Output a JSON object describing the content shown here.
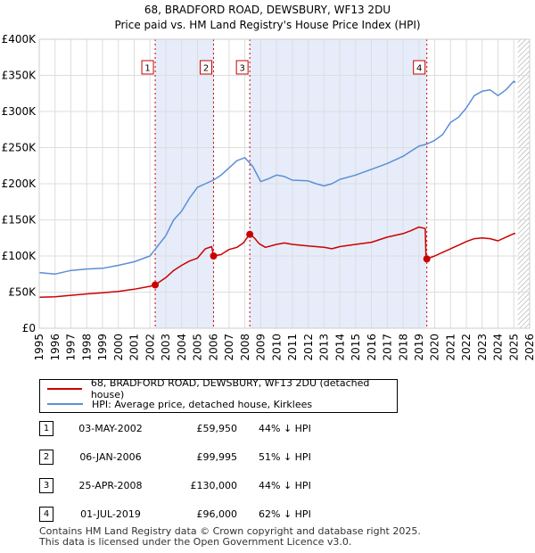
{
  "title_line1": "68, BRADFORD ROAD, DEWSBURY, WF13 2DU",
  "title_line2": "Price paid vs. HM Land Registry's House Price Index (HPI)",
  "chart_data": {
    "type": "line",
    "xlim": [
      1995,
      2026
    ],
    "ylim": [
      0,
      400000
    ],
    "x_ticks": [
      1995,
      1996,
      1997,
      1998,
      1999,
      2000,
      2001,
      2002,
      2003,
      2004,
      2005,
      2006,
      2007,
      2008,
      2009,
      2010,
      2011,
      2012,
      2013,
      2014,
      2015,
      2016,
      2017,
      2018,
      2019,
      2020,
      2021,
      2022,
      2023,
      2024,
      2025,
      2026
    ],
    "y_ticks": [
      {
        "value": 0,
        "label": "£0"
      },
      {
        "value": 50000,
        "label": "£50K"
      },
      {
        "value": 100000,
        "label": "£100K"
      },
      {
        "value": 150000,
        "label": "£150K"
      },
      {
        "value": 200000,
        "label": "£200K"
      },
      {
        "value": 250000,
        "label": "£250K"
      },
      {
        "value": 300000,
        "label": "£300K"
      },
      {
        "value": 350000,
        "label": "£350K"
      },
      {
        "value": 400000,
        "label": "£400K"
      }
    ],
    "grid": true,
    "hatched_from": 2025.25,
    "shaded_periods": [
      [
        2002.33,
        2006.02
      ],
      [
        2008.31,
        2019.5
      ]
    ],
    "series": [
      {
        "name": "68, BRADFORD ROAD, DEWSBURY, WF13 2DU (detached house)",
        "color": "#cc0000",
        "points": [
          [
            1995.0,
            43000
          ],
          [
            1996.0,
            43500
          ],
          [
            1997.0,
            45500
          ],
          [
            1998.0,
            47500
          ],
          [
            1999.0,
            49000
          ],
          [
            2000.0,
            51000
          ],
          [
            2001.0,
            54000
          ],
          [
            2002.0,
            58000
          ],
          [
            2002.33,
            59950
          ],
          [
            2003.0,
            70000
          ],
          [
            2003.5,
            80000
          ],
          [
            2004.0,
            87000
          ],
          [
            2004.5,
            93000
          ],
          [
            2005.0,
            97000
          ],
          [
            2005.5,
            110000
          ],
          [
            2005.9,
            113000
          ],
          [
            2006.02,
            99995
          ],
          [
            2006.5,
            102000
          ],
          [
            2007.0,
            109000
          ],
          [
            2007.5,
            112000
          ],
          [
            2007.9,
            118000
          ],
          [
            2008.2,
            127000
          ],
          [
            2008.31,
            130000
          ],
          [
            2008.6,
            125000
          ],
          [
            2008.9,
            117000
          ],
          [
            2009.3,
            112000
          ],
          [
            2010.0,
            116000
          ],
          [
            2010.5,
            118000
          ],
          [
            2011.0,
            116000
          ],
          [
            2012.0,
            114000
          ],
          [
            2013.0,
            112000
          ],
          [
            2013.5,
            110000
          ],
          [
            2014.0,
            113000
          ],
          [
            2015.0,
            116000
          ],
          [
            2016.0,
            119000
          ],
          [
            2017.0,
            126000
          ],
          [
            2018.0,
            131000
          ],
          [
            2018.5,
            135000
          ],
          [
            2019.0,
            140000
          ],
          [
            2019.4,
            138000
          ],
          [
            2019.45,
            96000
          ],
          [
            2019.5,
            96000
          ],
          [
            2020.0,
            100000
          ],
          [
            2020.5,
            105000
          ],
          [
            2021.0,
            110000
          ],
          [
            2021.5,
            115000
          ],
          [
            2022.0,
            120000
          ],
          [
            2022.5,
            124000
          ],
          [
            2023.0,
            125000
          ],
          [
            2023.5,
            124000
          ],
          [
            2024.0,
            121000
          ],
          [
            2024.5,
            126000
          ],
          [
            2025.0,
            131000
          ],
          [
            2025.1,
            131000
          ]
        ]
      },
      {
        "name": "HPI: Average price, detached house, Kirklees",
        "color": "#5b8fd4",
        "points": [
          [
            1995.0,
            77000
          ],
          [
            1996.0,
            75000
          ],
          [
            1997.0,
            80000
          ],
          [
            1998.0,
            82000
          ],
          [
            1999.0,
            83000
          ],
          [
            2000.0,
            87000
          ],
          [
            2001.0,
            92000
          ],
          [
            2002.0,
            100000
          ],
          [
            2003.0,
            128000
          ],
          [
            2003.5,
            150000
          ],
          [
            2004.0,
            162000
          ],
          [
            2004.5,
            180000
          ],
          [
            2005.0,
            195000
          ],
          [
            2005.5,
            200000
          ],
          [
            2006.0,
            205000
          ],
          [
            2006.5,
            212000
          ],
          [
            2007.0,
            222000
          ],
          [
            2007.5,
            232000
          ],
          [
            2008.0,
            236000
          ],
          [
            2008.5,
            224000
          ],
          [
            2009.0,
            203000
          ],
          [
            2009.5,
            207000
          ],
          [
            2010.0,
            212000
          ],
          [
            2010.5,
            210000
          ],
          [
            2011.0,
            205000
          ],
          [
            2012.0,
            204000
          ],
          [
            2012.5,
            200000
          ],
          [
            2013.0,
            197000
          ],
          [
            2013.5,
            200000
          ],
          [
            2014.0,
            206000
          ],
          [
            2015.0,
            212000
          ],
          [
            2016.0,
            220000
          ],
          [
            2017.0,
            228000
          ],
          [
            2018.0,
            238000
          ],
          [
            2018.5,
            245000
          ],
          [
            2019.0,
            252000
          ],
          [
            2019.5,
            255000
          ],
          [
            2020.0,
            260000
          ],
          [
            2020.5,
            268000
          ],
          [
            2021.0,
            285000
          ],
          [
            2021.5,
            292000
          ],
          [
            2022.0,
            305000
          ],
          [
            2022.5,
            322000
          ],
          [
            2023.0,
            328000
          ],
          [
            2023.5,
            330000
          ],
          [
            2024.0,
            322000
          ],
          [
            2024.5,
            330000
          ],
          [
            2025.0,
            342000
          ],
          [
            2025.1,
            340000
          ]
        ]
      }
    ],
    "sales": [
      {
        "label": "1",
        "x": 2002.33,
        "y": 59950
      },
      {
        "label": "2",
        "x": 2006.02,
        "y": 99995
      },
      {
        "label": "3",
        "x": 2008.31,
        "y": 130000
      },
      {
        "label": "4",
        "x": 2019.5,
        "y": 96000
      }
    ]
  },
  "legend": {
    "property_label": "68, BRADFORD ROAD, DEWSBURY, WF13 2DU (detached house)",
    "hpi_label": "HPI: Average price, detached house, Kirklees",
    "property_color": "#cc0000",
    "hpi_color": "#5b8fd4"
  },
  "sales_table": [
    {
      "num": "1",
      "date": "03-MAY-2002",
      "price": "£59,950",
      "hpi": "44% ↓ HPI"
    },
    {
      "num": "2",
      "date": "06-JAN-2006",
      "price": "£99,995",
      "hpi": "51% ↓ HPI"
    },
    {
      "num": "3",
      "date": "25-APR-2008",
      "price": "£130,000",
      "hpi": "44% ↓ HPI"
    },
    {
      "num": "4",
      "date": "01-JUL-2019",
      "price": "£96,000",
      "hpi": "62% ↓ HPI"
    }
  ],
  "footer": {
    "line1": "Contains HM Land Registry data © Crown copyright and database right 2025.",
    "line2": "This data is licensed under the Open Government Licence v3.0."
  }
}
